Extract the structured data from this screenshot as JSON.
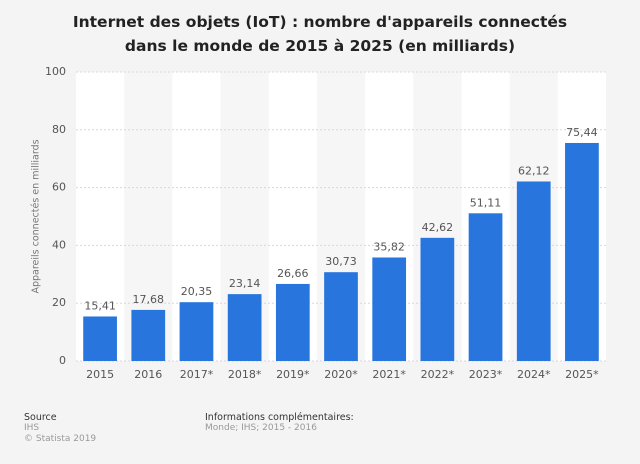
{
  "chart_data": {
    "type": "bar",
    "title": "Internet des objets (IoT) : nombre d'appareils connectés dans le monde de 2015 à 2025 (en milliards)",
    "y_label": "Appareils connectés en milliards",
    "categories": [
      "2015",
      "2016",
      "2017*",
      "2018*",
      "2019*",
      "2020*",
      "2021*",
      "2022*",
      "2023*",
      "2024*",
      "2025*"
    ],
    "values": [
      15.41,
      17.68,
      20.35,
      23.14,
      26.66,
      30.73,
      35.82,
      42.62,
      51.11,
      62.12,
      75.44
    ],
    "value_labels": [
      "15,41",
      "17,68",
      "20,35",
      "23,14",
      "26,66",
      "30,73",
      "35,82",
      "42,62",
      "51,11",
      "62,12",
      "75,44"
    ],
    "color": "#2876dd",
    "ylim": [
      0,
      100
    ],
    "yticks": [
      0,
      20,
      40,
      60,
      80,
      100
    ],
    "grid": true
  },
  "footer": {
    "source_heading": "Source",
    "source": "IHS",
    "copyright": "© Statista 2019",
    "info_heading": "Informations complémentaires:",
    "info": "Monde; IHS; 2015 - 2016"
  }
}
